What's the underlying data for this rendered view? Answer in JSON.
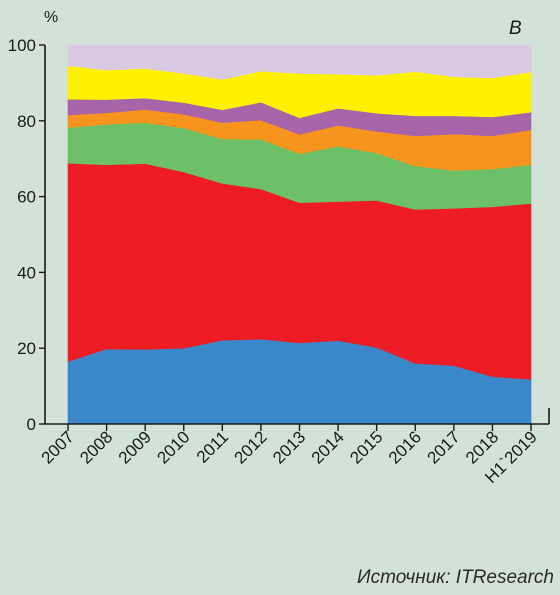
{
  "chart_data": {
    "type": "area",
    "stacked": true,
    "panel_label": "B",
    "y_unit": "%",
    "ylim": [
      0,
      100
    ],
    "y_ticks": [
      0,
      20,
      40,
      60,
      80,
      100
    ],
    "categories": [
      "2007",
      "2008",
      "2009",
      "2010",
      "2011",
      "2012",
      "2013",
      "2014",
      "2015",
      "2016",
      "2017",
      "2018",
      "H1`2019"
    ],
    "grid": false,
    "legend": "none",
    "series": [
      {
        "color": "#3a87c9",
        "values": [
          16.5,
          19.8,
          19.7,
          20.0,
          22.1,
          22.4,
          21.4,
          22.0,
          20.2,
          16.0,
          15.4,
          12.5,
          11.8
        ]
      },
      {
        "color": "#ee1c25",
        "values": [
          52.3,
          48.6,
          49.0,
          46.5,
          41.4,
          39.6,
          37.0,
          36.7,
          38.8,
          40.6,
          41.5,
          44.8,
          46.4
        ]
      },
      {
        "color": "#6dc067",
        "values": [
          9.4,
          10.7,
          10.8,
          11.6,
          11.7,
          13.1,
          12.9,
          14.6,
          12.5,
          11.5,
          10.0,
          10.0,
          10.2
        ]
      },
      {
        "color": "#f7941d",
        "values": [
          3.3,
          3.0,
          3.5,
          3.6,
          4.3,
          5.1,
          5.1,
          5.5,
          5.7,
          7.9,
          9.6,
          8.7,
          9.2
        ]
      },
      {
        "color": "#a864a8",
        "values": [
          4.2,
          3.5,
          3.0,
          3.1,
          3.4,
          4.7,
          4.4,
          4.5,
          4.8,
          5.3,
          4.8,
          5.0,
          4.7
        ]
      },
      {
        "color": "#fff200",
        "values": [
          8.8,
          7.8,
          7.8,
          7.7,
          8.0,
          8.2,
          11.7,
          9.0,
          10.0,
          11.7,
          10.3,
          10.3,
          10.6
        ]
      },
      {
        "color": "#d9c9e3",
        "values": [
          5.5,
          6.6,
          6.2,
          7.5,
          9.1,
          6.9,
          7.5,
          7.7,
          8.0,
          7.0,
          8.4,
          8.7,
          7.1
        ]
      }
    ]
  },
  "source_text": "Источник: ITResearch"
}
